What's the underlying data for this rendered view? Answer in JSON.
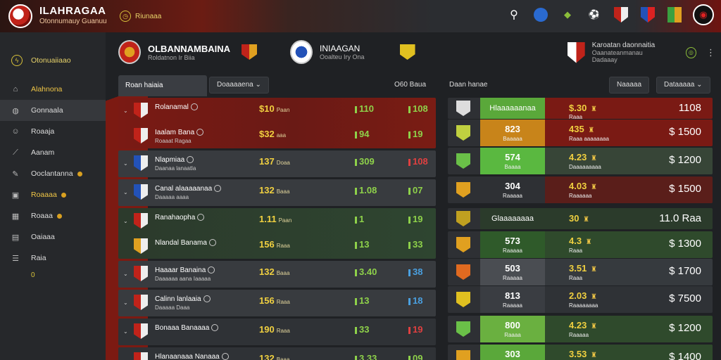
{
  "brand": {
    "title": "ILAHRAGAA",
    "subtitle": "Otonnumauy Guanuu",
    "chip": "Riunaaa"
  },
  "sidebar": {
    "header": "Otonuaiiaao",
    "items": [
      {
        "label": "Alahnona",
        "icon": "home-icon",
        "highlight": true,
        "active": false,
        "dot": false
      },
      {
        "label": "Gonnaala",
        "icon": "ball-icon",
        "highlight": false,
        "active": true,
        "dot": false
      },
      {
        "label": "Roaaja",
        "icon": "user-icon",
        "highlight": false,
        "active": false,
        "dot": false
      },
      {
        "label": "Aanam",
        "icon": "chart-icon",
        "highlight": false,
        "active": false,
        "dot": false
      },
      {
        "label": "Ooclantanna",
        "icon": "edit-icon",
        "highlight": false,
        "active": false,
        "dot": true
      },
      {
        "label": "Roaaaa",
        "icon": "lock-icon",
        "highlight": true,
        "active": false,
        "dot": true
      },
      {
        "label": "Roaaa",
        "icon": "calendar-icon",
        "highlight": false,
        "active": false,
        "dot": true
      },
      {
        "label": "Oaiaaa",
        "icon": "grid-icon",
        "highlight": false,
        "active": false,
        "dot": false
      },
      {
        "label": "Raia",
        "icon": "list-icon",
        "highlight": false,
        "active": false,
        "dot": false
      }
    ],
    "extra": "0"
  },
  "match": {
    "home": {
      "name": "OLBANNAMBAINA",
      "sub": "Roldatnon Ir Biia"
    },
    "away": {
      "name": "INIAAGAN",
      "sub": "Ooalteu Iry Ona"
    },
    "right": {
      "name": "Karoatan daonnaitia",
      "sub": "Oaanateanmanau Dadaaay"
    }
  },
  "toolbar": {
    "tab": "Roan haiaia",
    "filter": "Doaaaaena",
    "col_a": "O60 Baua",
    "col_b": "Daan hanae",
    "btn_a": "Naaaaa",
    "btn_b": "Dataaaaa"
  },
  "left_rows": [
    {
      "tone": "red",
      "lines": [
        {
          "name": "Rolanamal",
          "sub": "",
          "v1": "$10",
          "v1s": "Paan",
          "v2": "110",
          "v3": "108",
          "v3c": "green",
          "crest": "#c0231a"
        },
        {
          "name": "Iaalam Bana",
          "sub": "Roaaat Ragaa",
          "v1": "$32",
          "v1s": "aaa",
          "v2": "94",
          "v3": "19",
          "v3c": "green",
          "crest": "#c0231a"
        }
      ]
    },
    {
      "tone": "dark",
      "lines": [
        {
          "name": "Nlapmiaa",
          "sub": "Daanaa lanaatla",
          "v1": "137",
          "v1s": "Doaa",
          "v2": "309",
          "v3": "108",
          "v3c": "red",
          "crest": "#2352b8"
        }
      ]
    },
    {
      "tone": "dark",
      "lines": [
        {
          "name": "Canal alaaaaanaa",
          "sub": "Daaaaa aaaa",
          "v1": "132",
          "v1s": "Baaa",
          "v2": "1.08",
          "v3": "07",
          "v3c": "green",
          "crest": "#2352b8"
        }
      ]
    },
    {
      "tone": "green",
      "lines": [
        {
          "name": "Ranahaopha",
          "sub": "",
          "v1": "1.11",
          "v1s": "Paan",
          "v2": "1",
          "v3": "19",
          "v3c": "green",
          "crest": "#c0231a"
        },
        {
          "name": "Nlandal Banama",
          "sub": "",
          "v1": "156",
          "v1s": "Raaa",
          "v2": "13",
          "v3": "33",
          "v3c": "green",
          "crest": "#e0a020"
        }
      ]
    },
    {
      "tone": "dark",
      "lines": [
        {
          "name": "Haaaar Banaina",
          "sub": "Daaaaaa aana Iaaaaa",
          "v1": "132",
          "v1s": "Baaa",
          "v2": "3.40",
          "v3": "38",
          "v3c": "blue",
          "crest": "#c0231a"
        }
      ]
    },
    {
      "tone": "dark",
      "lines": [
        {
          "name": "Calinn lanlaaia",
          "sub": "Daaaaa Daaa",
          "v1": "156",
          "v1s": "Raaa",
          "v2": "13",
          "v3": "18",
          "v3c": "blue",
          "crest": "#c0231a"
        }
      ]
    },
    {
      "tone": "mid",
      "lines": [
        {
          "name": "Bonaaa Banaaaa",
          "sub": "",
          "v1": "190",
          "v1s": "Raaa",
          "v2": "33",
          "v3": "19",
          "v3c": "red",
          "crest": "#c0231a"
        }
      ]
    },
    {
      "tone": "mid",
      "lines": [
        {
          "name": "Hlanaanaaa Nanaaa",
          "sub": "",
          "v1": "132",
          "v1s": "Baaa",
          "v2": "3.33",
          "v3": "09",
          "v3c": "green",
          "crest": "#c0231a"
        }
      ]
    }
  ],
  "right_rows": [
    {
      "v1": "Hlaaaaaanaa",
      "v1s": "",
      "v2": "$.30",
      "v2s": "Raaa",
      "v3": "1108",
      "seg1": "#5aa83a",
      "seg2": "#7a1a14",
      "crest": "#ddd",
      "big": true
    },
    {
      "v1": "823",
      "v1s": "Baaaaa",
      "v2": "435",
      "v2s": "Raaa aaaaaaaa",
      "v3": "$ 1500",
      "seg1": "#c8841a",
      "seg2": "#7a1a14",
      "crest": "#c0d040",
      "big": false
    },
    {
      "v1": "574",
      "v1s": "Baaaa",
      "v2": "4.23",
      "v2s": "Daaaaaaaaa",
      "v3": "$ 1200",
      "seg1": "#5ab840",
      "seg2": "#374537",
      "crest": "#6ac048",
      "big": false
    },
    {
      "v1": "304",
      "v1s": "Raaaaa",
      "v2": "4.03",
      "v2s": "Raaaaaa",
      "v3": "$ 1500",
      "seg1": "#2e3034",
      "seg2": "#5a1e1a",
      "crest": "#e0a020",
      "big": false
    },
    {
      "v1": "Glaaaaaaaa",
      "v1s": "",
      "v2": "30",
      "v2s": "",
      "v3": "11.0 Raa",
      "seg1": "#2b3b2b",
      "seg2": "#2b3b2b",
      "crest": "#c0a020",
      "big": true
    },
    {
      "v1": "573",
      "v1s": "Raaaaa",
      "v2": "4.3",
      "v2s": "Raaa",
      "v3": "$ 1300",
      "seg1": "#2f5a2a",
      "seg2": "#2f4a2c",
      "crest": "#e0a020",
      "big": false
    },
    {
      "v1": "503",
      "v1s": "Raaaaa",
      "v2": "3.51",
      "v2s": "Raaa",
      "v3": "$ 1700",
      "seg1": "#4a4d52",
      "seg2": "#363a3e",
      "crest": "#e06a20",
      "big": false
    },
    {
      "v1": "813",
      "v1s": "Raaaaa",
      "v2": "2.03",
      "v2s": "Raaaaaaaa",
      "v3": "$ 7500",
      "seg1": "#3a3d42",
      "seg2": "#2f3236",
      "crest": "#e0c020",
      "big": false
    },
    {
      "v1": "800",
      "v1s": "Raaaa",
      "v2": "4.23",
      "v2s": "Raaaaa",
      "v3": "$ 1200",
      "seg1": "#6ab040",
      "seg2": "#2f4a2c",
      "crest": "#6ac048",
      "big": false
    },
    {
      "v1": "303",
      "v1s": "Raaaaa",
      "v2": "3.53",
      "v2s": "Raaa",
      "v3": "$ 1400",
      "seg1": "#5aa83a",
      "seg2": "#2f4a2c",
      "crest": "#e0a020",
      "big": false
    }
  ]
}
